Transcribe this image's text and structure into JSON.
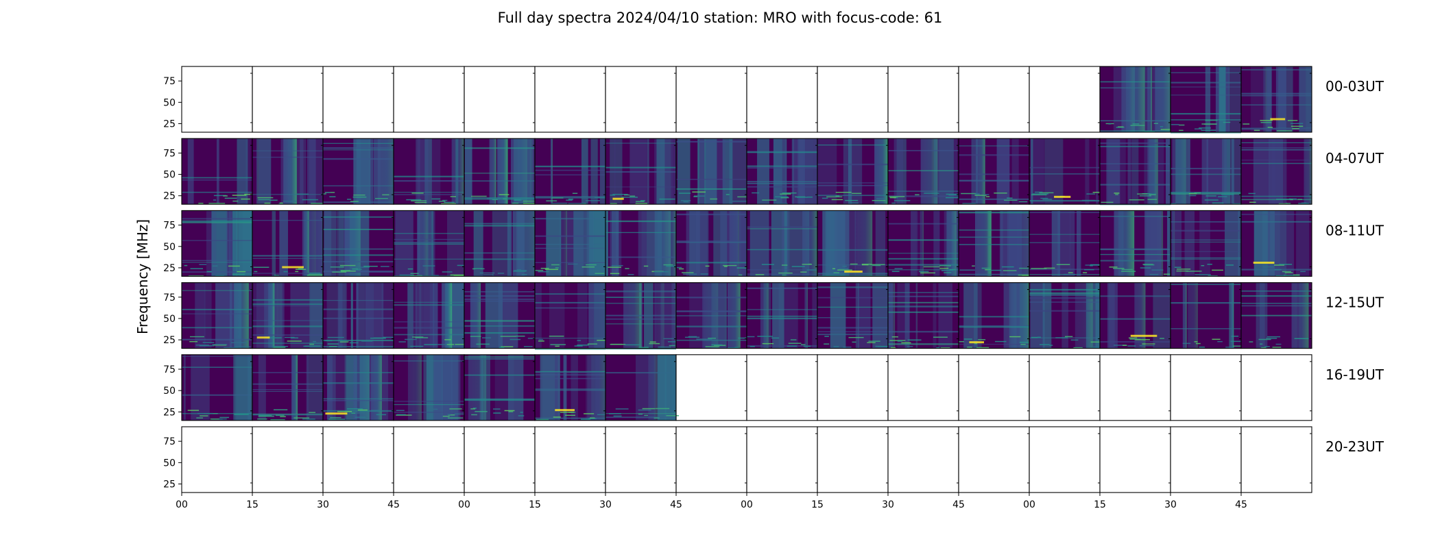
{
  "chart_data": {
    "type": "heatmap",
    "title": "Full day spectra 2024/04/10 station: MRO with focus-code: 61",
    "ylabel": "Frequency [MHz]",
    "ylim": [
      15,
      92
    ],
    "yticks": [
      25,
      50,
      75
    ],
    "xticks": [
      "00",
      "15",
      "30",
      "45",
      "00",
      "15",
      "30",
      "45",
      "00",
      "15",
      "30",
      "45",
      "00",
      "15",
      "30",
      "45"
    ],
    "rows": [
      {
        "label": "00-03UT",
        "panels": [
          0,
          0,
          0,
          0,
          0,
          0,
          0,
          0,
          0,
          0,
          0,
          0,
          0,
          1,
          1,
          1
        ]
      },
      {
        "label": "04-07UT",
        "panels": [
          1,
          1,
          1,
          1,
          1,
          1,
          1,
          1,
          1,
          1,
          1,
          1,
          1,
          1,
          1,
          1
        ]
      },
      {
        "label": "08-11UT",
        "panels": [
          1,
          1,
          1,
          1,
          1,
          1,
          1,
          1,
          1,
          1,
          1,
          1,
          1,
          1,
          1,
          1
        ]
      },
      {
        "label": "12-15UT",
        "panels": [
          1,
          1,
          1,
          1,
          1,
          1,
          1,
          1,
          1,
          1,
          1,
          1,
          1,
          1,
          1,
          1
        ]
      },
      {
        "label": "16-19UT",
        "panels": [
          1,
          1,
          1,
          1,
          1,
          1,
          1,
          0,
          0,
          0,
          0,
          0,
          0,
          0,
          0,
          0
        ]
      },
      {
        "label": "20-23UT",
        "panels": [
          0,
          0,
          0,
          0,
          0,
          0,
          0,
          0,
          0,
          0,
          0,
          0,
          0,
          0,
          0,
          0
        ]
      }
    ],
    "colormap": "viridis",
    "colors": {
      "low": "#440154",
      "mid": "#31688e",
      "high": "#35b779",
      "peak": "#fde725"
    }
  }
}
